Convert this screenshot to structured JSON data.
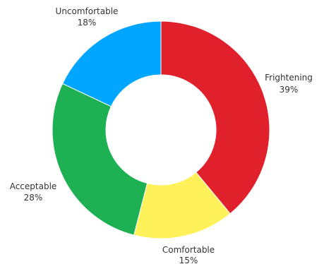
{
  "chart_data": {
    "type": "pie",
    "variant": "donut",
    "slices": [
      {
        "label": "Frightening",
        "value": 39,
        "value_label": "39%",
        "color": "#e0202b"
      },
      {
        "label": "Comfortable",
        "value": 15,
        "value_label": "15%",
        "color": "#fff159"
      },
      {
        "label": "Acceptable",
        "value": 28,
        "value_label": "28%",
        "color": "#1db153"
      },
      {
        "label": "Uncomfortable",
        "value": 18,
        "value_label": "18%",
        "color": "#00a6ff"
      }
    ],
    "start_angle_deg": 0,
    "direction": "clockwise",
    "legend": "none"
  }
}
